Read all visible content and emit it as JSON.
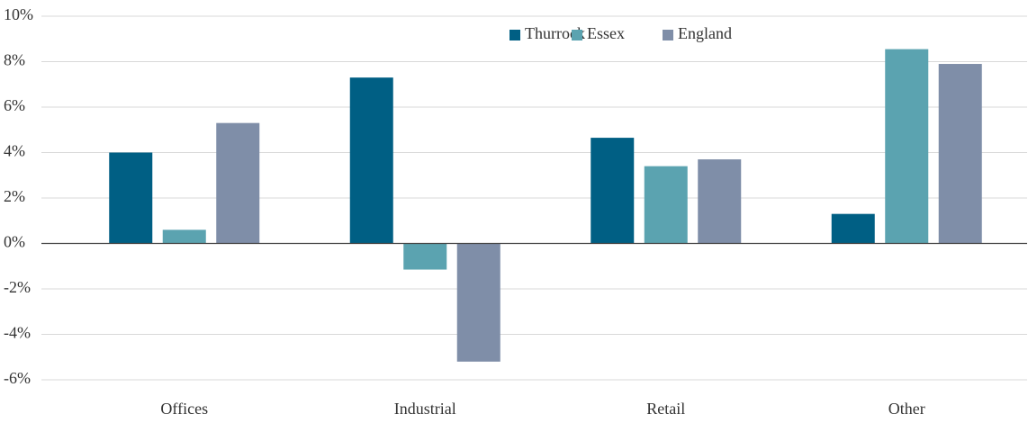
{
  "chart_data": {
    "type": "bar",
    "categories": [
      "Offices",
      "Industrial",
      "Retail",
      "Other"
    ],
    "series": [
      {
        "name": "Thurrock",
        "color": "#005f84",
        "values": [
          4.0,
          7.3,
          4.65,
          1.3
        ]
      },
      {
        "name": "Essex",
        "color": "#5ba3b0",
        "values": [
          0.6,
          -1.15,
          3.4,
          8.55
        ]
      },
      {
        "name": "England",
        "color": "#7f8ea8",
        "values": [
          5.3,
          -5.2,
          3.7,
          7.9
        ]
      }
    ],
    "ylim": [
      -6,
      10
    ],
    "yticks": [
      {
        "value": -6,
        "label": "-6%"
      },
      {
        "value": -4,
        "label": "-4%"
      },
      {
        "value": -2,
        "label": "-2%"
      },
      {
        "value": 0,
        "label": "0%"
      },
      {
        "value": 2,
        "label": "2%"
      },
      {
        "value": 4,
        "label": "4%"
      },
      {
        "value": 6,
        "label": "6%"
      },
      {
        "value": 8,
        "label": "8%"
      },
      {
        "value": 10,
        "label": "10%"
      }
    ],
    "grid": true,
    "legend": "top"
  }
}
